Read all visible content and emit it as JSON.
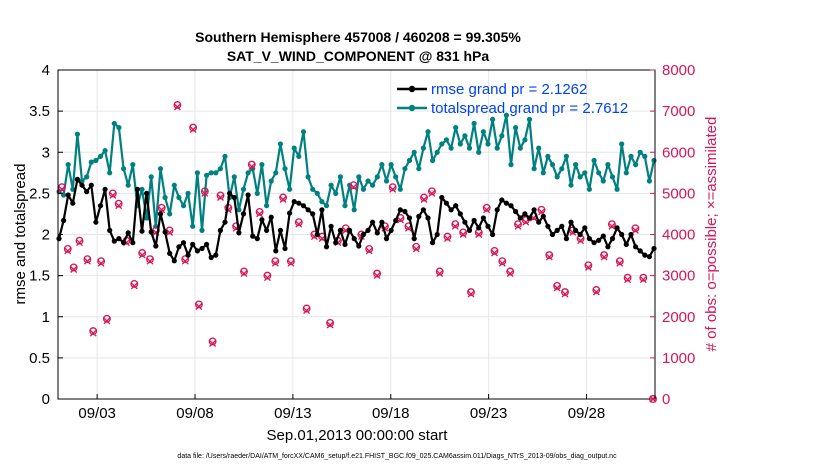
{
  "chart_data": {
    "type": "line",
    "title": "Southern Hemisphere 457008 / 460208 = 99.305%",
    "subtitle": "SAT_V_WIND_COMPONENT @ 831 hPa",
    "xlabel": "Sep.01,2013 00:00:00 start",
    "ylabel_left": "rmse and totalspread",
    "ylabel_right": "# of obs: o=possible; ×=assimilated",
    "footnote": "data file: /Users/raeder/DAI/ATM_forcXX/CAM6_setup/f.e21.FHIST_BGC.f09_025.CAM6assim.011/Diags_NTrS_2013-09/obs_diag_output.nc",
    "xlim": [
      1.0,
      31.5
    ],
    "ylim_left": [
      0,
      4
    ],
    "ylim_right": [
      0,
      8000
    ],
    "x_ticks": [
      3,
      8,
      13,
      18,
      23,
      28
    ],
    "x_tick_labels": [
      "09/03",
      "09/08",
      "09/13",
      "09/18",
      "09/23",
      "09/28"
    ],
    "y_ticks_left": [
      "0",
      "0.5",
      "1",
      "1.5",
      "2",
      "2.5",
      "3",
      "3.5",
      "4"
    ],
    "y_ticks_right": [
      "0",
      "1000",
      "2000",
      "3000",
      "4000",
      "5000",
      "6000",
      "7000",
      "8000"
    ],
    "legend": [
      {
        "label": "rmse grand pr = 2.1262",
        "color": "#000000"
      },
      {
        "label": "totalspread grand pr = 2.7612",
        "color": "#008080"
      }
    ],
    "colors": {
      "rmse": "#000000",
      "spread": "#008080",
      "obs": "#d6155a",
      "grid": "#e6e6e6",
      "legend_text": "#0044ee"
    },
    "series": [
      {
        "name": "rmse",
        "axis": "left",
        "values": [
          1.95,
          2.17,
          2.48,
          2.38,
          2.67,
          2.6,
          2.52,
          2.6,
          2.15,
          2.35,
          2.55,
          2.05,
          1.92,
          1.95,
          1.9,
          2.02,
          1.9,
          2.55,
          2.04,
          2.5,
          2.03,
          1.86,
          2.25,
          2.03,
          1.77,
          1.68,
          1.85,
          1.9,
          1.75,
          1.88,
          1.8,
          1.83,
          1.88,
          1.72,
          1.75,
          2.05,
          2.15,
          2.5,
          2.45,
          2.02,
          2.25,
          2.48,
          1.98,
          1.95,
          2.18,
          2.05,
          2.21,
          1.8,
          2.05,
          1.83,
          2.26,
          2.4,
          2.38,
          2.35,
          2.3,
          2.25,
          2.0,
          2.3,
          1.85,
          2.1,
          1.9,
          2.05,
          1.88,
          2.05,
          1.95,
          1.86,
          2.0,
          2.05,
          2.15,
          2.02,
          2.15,
          1.95,
          2.05,
          2.17,
          2.3,
          2.28,
          2.2,
          1.95,
          2.22,
          2.3,
          2.2,
          1.9,
          2.0,
          2.45,
          2.38,
          2.3,
          2.35,
          2.25,
          2.15,
          2.05,
          2.17,
          2.08,
          2.2,
          2.1,
          2.0,
          2.3,
          2.42,
          2.38,
          2.35,
          2.28,
          2.2,
          2.25,
          2.2,
          2.3,
          2.15,
          2.22,
          2.1,
          2.0,
          2.05,
          2.1,
          1.95,
          2.15,
          2.05,
          2.0,
          2.08,
          1.95,
          1.9,
          1.93,
          1.98,
          1.85,
          1.95,
          2.08,
          2.0,
          1.88,
          2.0,
          1.85,
          1.8,
          1.75,
          1.73,
          1.83
        ]
      },
      {
        "name": "totalspread",
        "axis": "left",
        "values": [
          2.52,
          2.48,
          2.85,
          2.55,
          3.22,
          2.65,
          2.7,
          2.88,
          2.9,
          2.95,
          3.02,
          2.75,
          3.35,
          3.3,
          2.8,
          2.6,
          2.85,
          2.35,
          2.55,
          2.2,
          2.7,
          2.1,
          2.8,
          2.45,
          2.25,
          2.6,
          2.45,
          2.35,
          2.5,
          2.1,
          2.75,
          2.05,
          2.72,
          2.75,
          2.75,
          2.8,
          2.95,
          2.45,
          2.7,
          2.3,
          2.55,
          2.75,
          2.8,
          2.5,
          2.85,
          2.35,
          2.65,
          2.75,
          3.1,
          2.8,
          2.55,
          3.05,
          2.95,
          3.25,
          2.7,
          2.55,
          2.5,
          2.4,
          2.35,
          2.6,
          2.5,
          2.7,
          2.35,
          2.6,
          2.3,
          2.7,
          2.55,
          2.65,
          2.6,
          2.7,
          2.85,
          2.65,
          2.85,
          2.7,
          2.55,
          2.8,
          2.9,
          3.0,
          2.8,
          3.05,
          3.25,
          2.9,
          3.0,
          3.1,
          3.15,
          3.05,
          3.3,
          3.1,
          3.2,
          3.05,
          3.35,
          3.0,
          3.25,
          3.1,
          3.4,
          3.05,
          3.2,
          3.45,
          2.85,
          3.3,
          3.05,
          3.15,
          3.4,
          2.8,
          3.05,
          2.75,
          2.95,
          2.85,
          2.7,
          2.8,
          2.95,
          2.6,
          2.85,
          2.7,
          2.75,
          2.55,
          2.9,
          2.75,
          2.65,
          2.85,
          2.7,
          2.55,
          3.1,
          2.75,
          2.95,
          2.85,
          3.0,
          2.95,
          2.65,
          2.9
        ]
      },
      {
        "name": "obs_possible",
        "axis": "right",
        "marker": "o",
        "x_values": [
          1.2,
          1.5,
          1.8,
          2.1,
          2.5,
          2.8,
          3.2,
          3.5,
          3.8,
          4.1,
          4.5,
          4.9,
          5.3,
          5.7,
          6.0,
          6.3,
          6.7,
          7.1,
          7.5,
          7.9,
          8.2,
          8.5,
          8.9,
          9.3,
          9.7,
          10.1,
          10.5,
          10.9,
          11.3,
          11.7,
          12.1,
          12.5,
          12.9,
          13.3,
          13.7,
          14.1,
          14.5,
          14.9,
          15.3,
          15.7,
          16.1,
          16.5,
          16.9,
          17.3,
          17.7,
          18.1,
          18.5,
          18.9,
          19.3,
          19.7,
          20.1,
          20.5,
          20.9,
          21.3,
          21.7,
          22.1,
          22.5,
          22.9,
          23.3,
          23.7,
          24.1,
          24.5,
          24.9,
          25.3,
          25.7,
          26.1,
          26.5,
          26.9,
          27.3,
          27.7,
          28.1,
          28.5,
          28.9,
          29.3,
          29.7,
          30.1,
          30.5,
          30.9,
          31.4
        ],
        "values": [
          5150,
          3650,
          3200,
          3850,
          3400,
          1650,
          3350,
          1950,
          5000,
          4750,
          3850,
          2800,
          3550,
          3400,
          4100,
          4650,
          4100,
          7150,
          3400,
          6600,
          2300,
          5050,
          1400,
          4950,
          4650,
          4200,
          3100,
          5700,
          4550,
          3000,
          3350,
          4900,
          3350,
          4300,
          2200,
          4000,
          3950,
          1850,
          3850,
          4150,
          5200,
          4000,
          3650,
          3050,
          4200,
          5150,
          4400,
          4200,
          3700,
          4900,
          5050,
          3100,
          3950,
          4250,
          4050,
          2600,
          4050,
          4650,
          3600,
          3350,
          3100,
          4250,
          4350,
          4450,
          4600,
          3500,
          2750,
          2600,
          4100,
          3900,
          3250,
          2650,
          3500,
          4250,
          3350,
          2950,
          4150,
          2950,
          0
        ]
      },
      {
        "name": "obs_assimilated",
        "axis": "right",
        "marker": "x",
        "x_values": [
          1.2,
          1.5,
          1.8,
          2.1,
          2.5,
          2.8,
          3.2,
          3.5,
          3.8,
          4.1,
          4.5,
          4.9,
          5.3,
          5.7,
          6.0,
          6.3,
          6.7,
          7.1,
          7.5,
          7.9,
          8.2,
          8.5,
          8.9,
          9.3,
          9.7,
          10.1,
          10.5,
          10.9,
          11.3,
          11.7,
          12.1,
          12.5,
          12.9,
          13.3,
          13.7,
          14.1,
          14.5,
          14.9,
          15.3,
          15.7,
          16.1,
          16.5,
          16.9,
          17.3,
          17.7,
          18.1,
          18.5,
          18.9,
          19.3,
          19.7,
          20.1,
          20.5,
          20.9,
          21.3,
          21.7,
          22.1,
          22.5,
          22.9,
          23.3,
          23.7,
          24.1,
          24.5,
          24.9,
          25.3,
          25.7,
          26.1,
          26.5,
          26.9,
          27.3,
          27.7,
          28.1,
          28.5,
          28.9,
          29.3,
          29.7,
          30.1,
          30.5,
          30.9,
          31.4
        ],
        "values": [
          5100,
          3600,
          3150,
          3800,
          3350,
          1600,
          3300,
          1900,
          4950,
          4700,
          3800,
          2750,
          3500,
          3350,
          4050,
          4600,
          4050,
          7100,
          3350,
          6550,
          2250,
          5000,
          1350,
          4900,
          4600,
          4150,
          3050,
          5650,
          4500,
          2950,
          3300,
          4850,
          3300,
          4250,
          2150,
          3950,
          3900,
          1800,
          3800,
          4100,
          5150,
          3950,
          3600,
          3000,
          4150,
          5100,
          4350,
          4150,
          3650,
          4850,
          5000,
          3050,
          3900,
          4200,
          4000,
          2550,
          4000,
          4600,
          3550,
          3300,
          3050,
          4200,
          4300,
          4400,
          4550,
          3450,
          2700,
          2550,
          4050,
          3850,
          3200,
          2600,
          3450,
          4200,
          3300,
          2900,
          4100,
          2900,
          0
        ]
      }
    ]
  }
}
